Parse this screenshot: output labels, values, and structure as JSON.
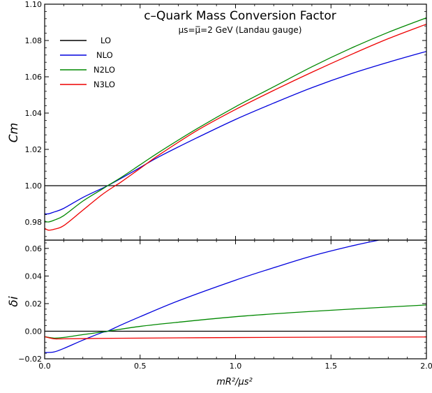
{
  "chart_data": [
    {
      "type": "line",
      "title": "c–Quark Mass Conversion Factor",
      "subtitle": "μs=μ̅=2 GeV (Landau gauge)",
      "ylabel": "Cm",
      "xlim": [
        0.0,
        2.0
      ],
      "ylim": [
        0.97,
        1.1
      ],
      "yticks": [
        "0.98",
        "1.00",
        "1.02",
        "1.04",
        "1.06",
        "1.08",
        "1.10"
      ],
      "legend_placement": "top-left",
      "series": [
        {
          "name": "LO",
          "color": "#000000",
          "x": [
            0.0,
            2.0
          ],
          "y": [
            1.0,
            1.0
          ]
        },
        {
          "name": "NLO",
          "color": "#0000dd",
          "x": [
            0.0,
            0.02,
            0.05,
            0.1,
            0.2,
            0.3,
            0.33,
            0.4,
            0.5,
            0.6,
            0.8,
            1.0,
            1.2,
            1.4,
            1.6,
            1.8,
            2.0
          ],
          "y": [
            0.9845,
            0.9845,
            0.9855,
            0.9875,
            0.9935,
            0.9985,
            1.0,
            1.004,
            1.01,
            1.016,
            1.0265,
            1.0365,
            1.0455,
            1.054,
            1.0615,
            1.068,
            1.074
          ]
        },
        {
          "name": "N2LO",
          "color": "#008800",
          "x": [
            0.0,
            0.02,
            0.05,
            0.1,
            0.2,
            0.3,
            0.33,
            0.4,
            0.5,
            0.6,
            0.8,
            1.0,
            1.2,
            1.4,
            1.6,
            1.8,
            2.0
          ],
          "y": [
            0.9805,
            0.98,
            0.981,
            0.9835,
            0.9915,
            0.998,
            1.0,
            1.0045,
            1.0115,
            1.0185,
            1.0315,
            1.0435,
            1.0545,
            1.0655,
            1.0755,
            1.0845,
            1.0925
          ]
        },
        {
          "name": "N3LO",
          "color": "#ee0000",
          "x": [
            0.0,
            0.02,
            0.05,
            0.1,
            0.2,
            0.3,
            0.37,
            0.4,
            0.5,
            0.6,
            0.8,
            1.0,
            1.2,
            1.4,
            1.6,
            1.8,
            2.0
          ],
          "y": [
            0.9765,
            0.9755,
            0.976,
            0.978,
            0.9865,
            0.995,
            1.0,
            1.002,
            1.0095,
            1.017,
            1.0305,
            1.042,
            1.0525,
            1.0625,
            1.072,
            1.081,
            1.089
          ]
        }
      ]
    },
    {
      "type": "line",
      "xlabel": "mR²/μs²",
      "ylabel": "δi",
      "xlim": [
        0.0,
        2.0
      ],
      "ylim": [
        -0.02,
        0.066
      ],
      "xticks": [
        "0.0",
        "0.5",
        "1.0",
        "1.5",
        "2.0"
      ],
      "yticks": [
        "−0.02",
        "0.00",
        "0.02",
        "0.04",
        "0.06"
      ],
      "series": [
        {
          "color": "#000000",
          "x": [
            0.0,
            2.0
          ],
          "y": [
            0.0,
            0.0
          ]
        },
        {
          "color": "#0000dd",
          "x": [
            0.0,
            0.05,
            0.1,
            0.2,
            0.3,
            0.33,
            0.4,
            0.5,
            0.7,
            1.0,
            1.2,
            1.4,
            1.6,
            1.75
          ],
          "y": [
            -0.0155,
            -0.015,
            -0.0125,
            -0.0065,
            -0.001,
            0.0,
            0.0045,
            0.0105,
            0.022,
            0.037,
            0.046,
            0.0545,
            0.0615,
            0.066
          ]
        },
        {
          "color": "#008800",
          "x": [
            0.0,
            0.05,
            0.1,
            0.2,
            0.33,
            0.5,
            0.7,
            1.0,
            1.3,
            1.6,
            2.0
          ],
          "y": [
            -0.004,
            -0.005,
            -0.0045,
            -0.0025,
            0.0,
            0.0035,
            0.0065,
            0.0105,
            0.0135,
            0.016,
            0.019
          ]
        },
        {
          "color": "#ee0000",
          "x": [
            0.0,
            0.05,
            0.1,
            0.3,
            0.5,
            1.0,
            1.5,
            2.0
          ],
          "y": [
            -0.004,
            -0.0055,
            -0.0055,
            -0.0052,
            -0.005,
            -0.0046,
            -0.0043,
            -0.0042
          ]
        }
      ]
    }
  ]
}
